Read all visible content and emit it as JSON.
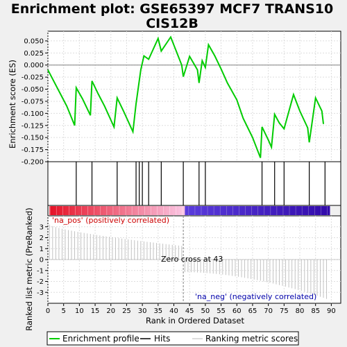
{
  "title_line1": "Enrichment plot: GSE65397 MCF7 TRANS10",
  "title_line2": "CIS12B",
  "colors": {
    "enrichment": "#00cc00",
    "hits": "#000000",
    "ranking": "#bbbbbb",
    "pos_label": "#cc0000",
    "neg_label": "#0000aa",
    "zero_line": "#808080"
  },
  "chart_data": {
    "type": "line",
    "xlabel": "Rank in Ordered Dataset",
    "es_ylabel": "Enrichment score (ES)",
    "rank_ylabel": "Ranked list metric (PreRanked)",
    "xlim": [
      0,
      93
    ],
    "x_ticks": [
      0,
      5,
      10,
      15,
      20,
      25,
      30,
      35,
      40,
      45,
      50,
      55,
      60,
      65,
      70,
      75,
      80,
      85,
      90
    ],
    "es_ylim": [
      -0.2,
      0.07
    ],
    "es_ticks": [
      -0.2,
      -0.175,
      -0.15,
      -0.125,
      -0.1,
      -0.075,
      -0.05,
      -0.025,
      0.0,
      0.025,
      0.05
    ],
    "es_tick_labels": [
      "-0.200",
      "-0.175",
      "-0.150",
      "-0.125",
      "-0.100",
      "-0.075",
      "-0.050",
      "-0.025",
      "0.000",
      "0.025",
      "0.050"
    ],
    "rank_ylim": [
      -4,
      4
    ],
    "rank_ticks": [
      -3,
      -2,
      -1,
      0,
      1,
      2,
      3
    ],
    "enrichment_profile": {
      "x": [
        0,
        4,
        6,
        8.5,
        9,
        11,
        13.5,
        14,
        16,
        18,
        21,
        22,
        24,
        27,
        28,
        29.5,
        30.5,
        32,
        35,
        36,
        39,
        42.5,
        43,
        45,
        47.5,
        48,
        49,
        50,
        51,
        53,
        55,
        57,
        60,
        62,
        65,
        67.5,
        68,
        70,
        71,
        72,
        73.5,
        75,
        78,
        80,
        82.5,
        83,
        85,
        87,
        87.5
      ],
      "y": [
        -0.01,
        -0.06,
        -0.085,
        -0.125,
        -0.047,
        -0.07,
        -0.104,
        -0.033,
        -0.06,
        -0.085,
        -0.128,
        -0.068,
        -0.095,
        -0.138,
        -0.08,
        -0.01,
        0.019,
        0.012,
        0.055,
        0.029,
        0.058,
        0.0,
        -0.024,
        0.018,
        -0.01,
        -0.037,
        0.009,
        -0.005,
        0.042,
        0.019,
        -0.008,
        -0.037,
        -0.072,
        -0.11,
        -0.15,
        -0.192,
        -0.128,
        -0.155,
        -0.17,
        -0.102,
        -0.12,
        -0.132,
        -0.061,
        -0.095,
        -0.13,
        -0.16,
        -0.068,
        -0.095,
        -0.122
      ]
    },
    "hits": [
      9,
      14,
      22,
      28,
      29,
      30,
      32,
      36,
      43,
      48,
      50,
      68,
      72,
      75,
      83,
      88
    ],
    "pos_label": "'na_pos' (positively correlated)",
    "neg_label": "'na_neg' (negatively correlated)",
    "zero_cross_label": "Zero cross at 43",
    "zero_cross": 43,
    "ranking_metric": {
      "start": 3.2,
      "pos_end": 1.25,
      "neg_start": -1.15,
      "end": -3.6,
      "n": 89
    },
    "legend": [
      "Enrichment profile",
      "Hits",
      "Ranking metric scores"
    ]
  }
}
